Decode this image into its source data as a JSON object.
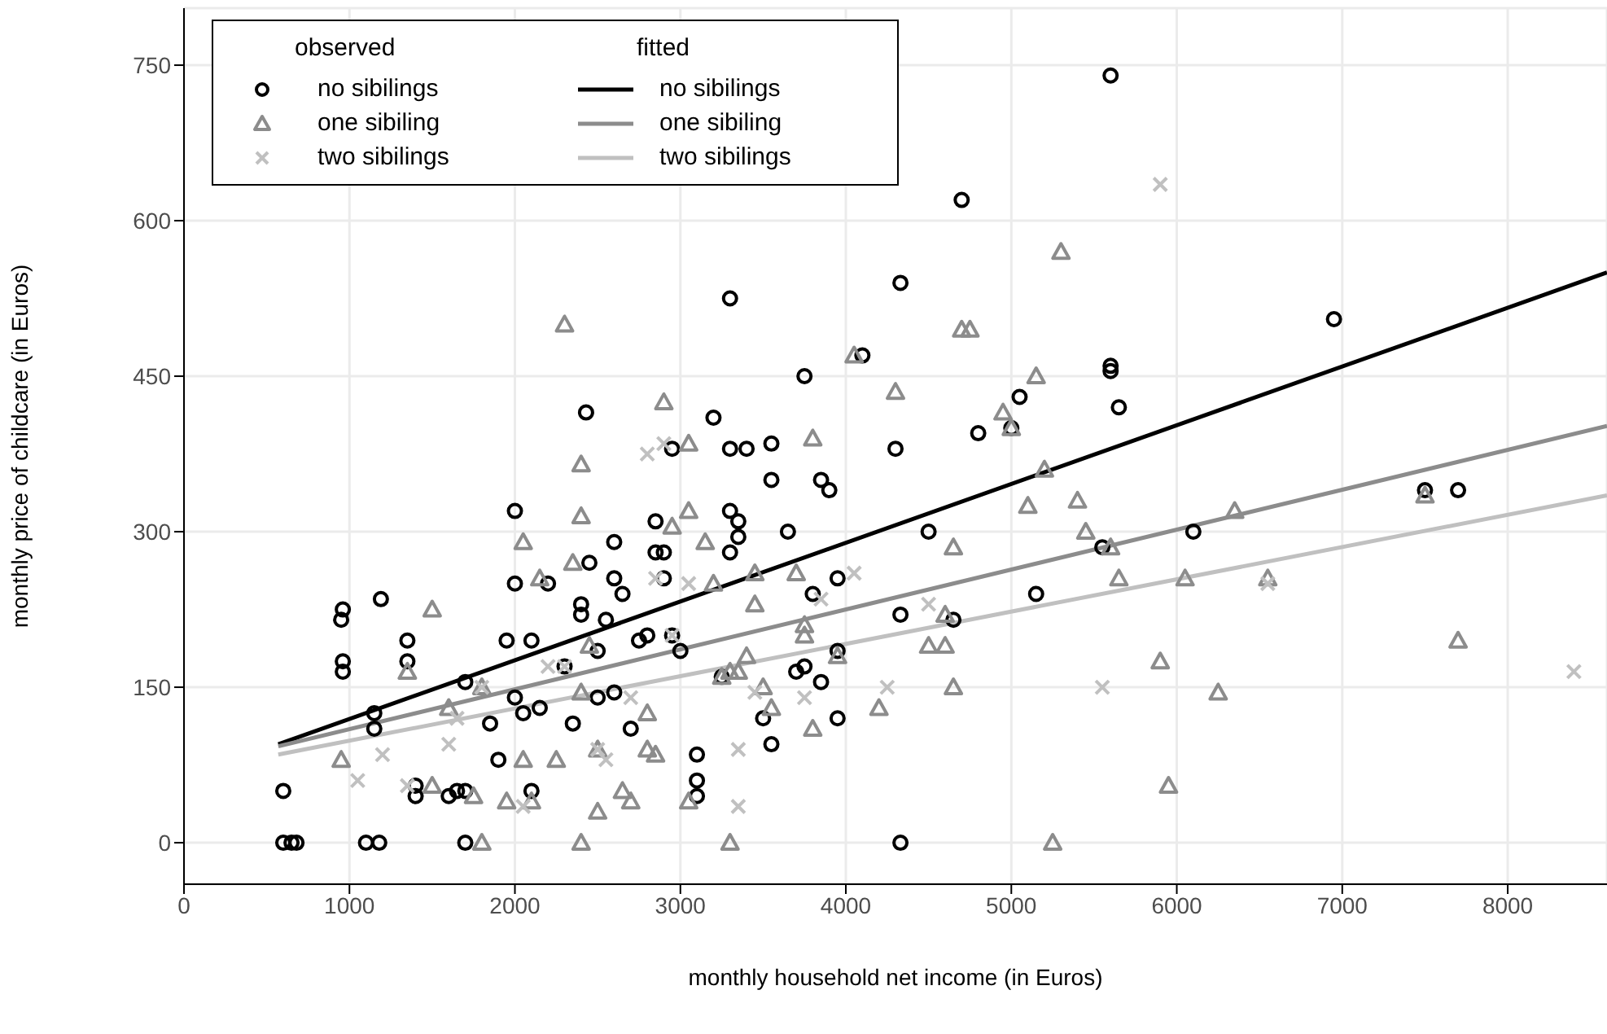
{
  "chart_data": {
    "type": "scatter",
    "xlabel": "monthly household net income (in Euros)",
    "ylabel": "monthly price of childcare (in Euros)",
    "legend_title": [
      "observed",
      "fitted"
    ],
    "legend": "top left",
    "grid": true,
    "xlim": [
      0,
      8600
    ],
    "xticks": [
      0,
      1000,
      2000,
      3000,
      4000,
      5000,
      6000,
      7000,
      8000
    ],
    "ylim": [
      -40,
      805
    ],
    "yticks": [
      0,
      150,
      300,
      450,
      600,
      750
    ],
    "series": [
      {
        "name": "no sibilings",
        "color": "#000000",
        "marker": "circle",
        "x": [
          600,
          650,
          680,
          1100,
          1180,
          1700,
          4330,
          600,
          950,
          960,
          960,
          960,
          1190,
          1350,
          1350,
          1150,
          1150,
          1400,
          1400,
          1600,
          1650,
          1700,
          1700,
          1850,
          1900,
          1950,
          2000,
          2000,
          2000,
          2100,
          2050,
          2150,
          2100,
          2200,
          2300,
          2350,
          2400,
          2400,
          2430,
          2450,
          2500,
          2500,
          2550,
          2600,
          2600,
          2600,
          2650,
          2700,
          2750,
          2800,
          2850,
          2850,
          2900,
          2900,
          2950,
          2950,
          3000,
          3100,
          3100,
          3100,
          3200,
          3250,
          3300,
          3300,
          3300,
          3300,
          3350,
          3350,
          3400,
          3500,
          3550,
          3550,
          3550,
          3650,
          3700,
          3750,
          3750,
          3800,
          3850,
          3850,
          3900,
          3950,
          3950,
          3950,
          4100,
          4300,
          4330,
          4330,
          4500,
          4650,
          4700,
          4800,
          5000,
          5050,
          5150,
          5550,
          5600,
          5600,
          5650,
          5600,
          6100,
          6950,
          7500,
          7700
        ],
        "values": [
          0,
          0,
          0,
          0,
          0,
          0,
          0,
          50,
          215,
          225,
          165,
          175,
          235,
          195,
          175,
          110,
          125,
          45,
          55,
          45,
          50,
          50,
          155,
          115,
          80,
          195,
          320,
          250,
          140,
          195,
          125,
          130,
          50,
          250,
          170,
          115,
          220,
          230,
          415,
          270,
          185,
          140,
          215,
          255,
          290,
          145,
          240,
          110,
          195,
          200,
          280,
          310,
          280,
          255,
          380,
          200,
          185,
          60,
          45,
          85,
          410,
          160,
          525,
          380,
          320,
          280,
          310,
          295,
          380,
          120,
          95,
          385,
          350,
          300,
          165,
          450,
          170,
          240,
          350,
          155,
          340,
          255,
          185,
          120,
          470,
          380,
          540,
          220,
          300,
          215,
          620,
          395,
          400,
          430,
          240,
          285,
          460,
          455,
          420,
          740,
          300,
          505,
          340,
          340
        ]
      },
      {
        "name": "one sibiling",
        "color": "#8c8c8c",
        "marker": "triangle",
        "x": [
          950,
          1350,
          1500,
          1500,
          1600,
          1750,
          1800,
          1800,
          1950,
          2050,
          2050,
          2100,
          2150,
          2250,
          2300,
          2350,
          2400,
          2400,
          2450,
          2400,
          2400,
          2500,
          2500,
          2650,
          2700,
          2800,
          2800,
          2850,
          2900,
          2950,
          3050,
          3050,
          3050,
          3150,
          3200,
          3300,
          3250,
          3300,
          3350,
          3400,
          3450,
          3450,
          3500,
          3550,
          3700,
          3750,
          3750,
          3800,
          3800,
          3950,
          4050,
          4200,
          4300,
          4500,
          4600,
          4600,
          4650,
          4650,
          4700,
          4750,
          4950,
          5000,
          5100,
          5150,
          5200,
          5250,
          5300,
          5400,
          5450,
          5600,
          5650,
          5900,
          5950,
          6050,
          6250,
          6350,
          6550,
          7500,
          7700
        ],
        "values": [
          80,
          165,
          225,
          55,
          130,
          45,
          0,
          150,
          40,
          80,
          290,
          40,
          255,
          80,
          500,
          270,
          365,
          315,
          190,
          145,
          0,
          90,
          30,
          50,
          40,
          125,
          90,
          85,
          425,
          305,
          385,
          320,
          40,
          290,
          250,
          0,
          160,
          165,
          165,
          180,
          260,
          230,
          150,
          130,
          260,
          200,
          210,
          390,
          110,
          180,
          470,
          130,
          435,
          190,
          190,
          220,
          285,
          150,
          495,
          495,
          415,
          400,
          325,
          450,
          360,
          0,
          570,
          330,
          300,
          285,
          255,
          175,
          55,
          255,
          145,
          320,
          255,
          335,
          195
        ]
      },
      {
        "name": "two sibilings",
        "color": "#c0c0c0",
        "marker": "cross",
        "x": [
          1050,
          1200,
          1350,
          1600,
          1650,
          1800,
          2050,
          2200,
          2300,
          2500,
          2550,
          2700,
          2800,
          2900,
          2850,
          2950,
          3050,
          3350,
          3350,
          3450,
          3750,
          3850,
          4050,
          4250,
          4500,
          5550,
          5900,
          6550,
          8400
        ],
        "values": [
          60,
          85,
          55,
          95,
          120,
          150,
          35,
          170,
          170,
          90,
          80,
          140,
          375,
          385,
          255,
          200,
          250,
          35,
          90,
          145,
          140,
          235,
          260,
          150,
          230,
          150,
          635,
          250,
          165
        ]
      },
      {
        "name": "no sibilings",
        "color": "#000000",
        "type": "line",
        "x": [
          570,
          8600
        ],
        "values": [
          95,
          550
        ]
      },
      {
        "name": "one sibiling",
        "color": "#8c8c8c",
        "type": "line",
        "x": [
          570,
          8600
        ],
        "values": [
          93,
          402
        ]
      },
      {
        "name": "two sibilings",
        "color": "#c0c0c0",
        "type": "line",
        "x": [
          570,
          8600
        ],
        "values": [
          85,
          335
        ]
      }
    ]
  }
}
